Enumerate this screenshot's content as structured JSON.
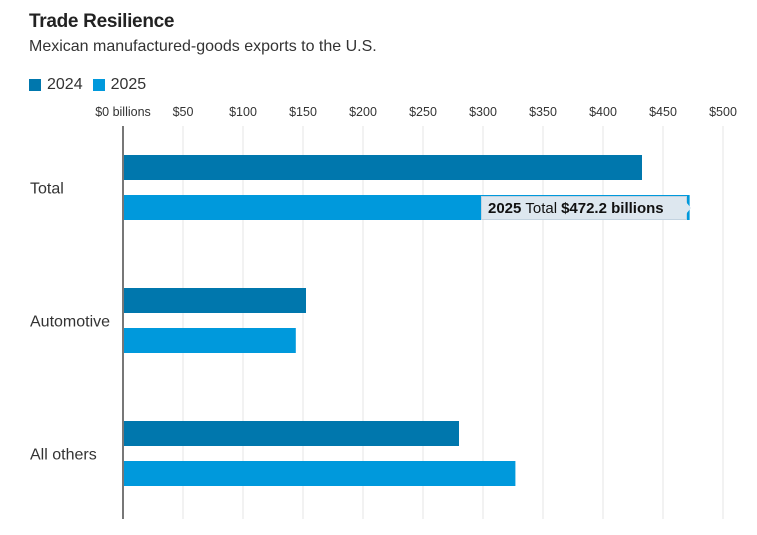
{
  "header": {
    "title": "Trade Resilience",
    "subtitle": "Mexican manufactured-goods exports to the U.S."
  },
  "colors": {
    "series_2024": "#0077ad",
    "series_2025": "#0099dc",
    "gridline": "#e6e6e6",
    "axis": "#777777",
    "tooltip_bg": "#dde7ef"
  },
  "tooltip": {
    "year": "2025",
    "category": "Total",
    "value": "$472.2 billions"
  },
  "chart_data": {
    "type": "bar",
    "orientation": "horizontal",
    "title": "Trade Resilience",
    "subtitle": "Mexican manufactured-goods exports to the U.S.",
    "xlabel": "",
    "ylabel": "",
    "unit": "billions of US dollars",
    "xlim": [
      0,
      500
    ],
    "xticks": [
      0,
      50,
      100,
      150,
      200,
      250,
      300,
      350,
      400,
      450,
      500
    ],
    "xtick_labels": [
      "$0 billions",
      "$50",
      "$100",
      "$150",
      "$200",
      "$250",
      "$300",
      "$350",
      "$400",
      "$450",
      "$500"
    ],
    "grid": true,
    "legend_position": "top-left",
    "categories": [
      "Total",
      "Automotive",
      "All others"
    ],
    "series": [
      {
        "name": "2024",
        "values": [
          432.5,
          152.5,
          280
        ]
      },
      {
        "name": "2025",
        "values": [
          472.2,
          144,
          327
        ]
      }
    ]
  }
}
